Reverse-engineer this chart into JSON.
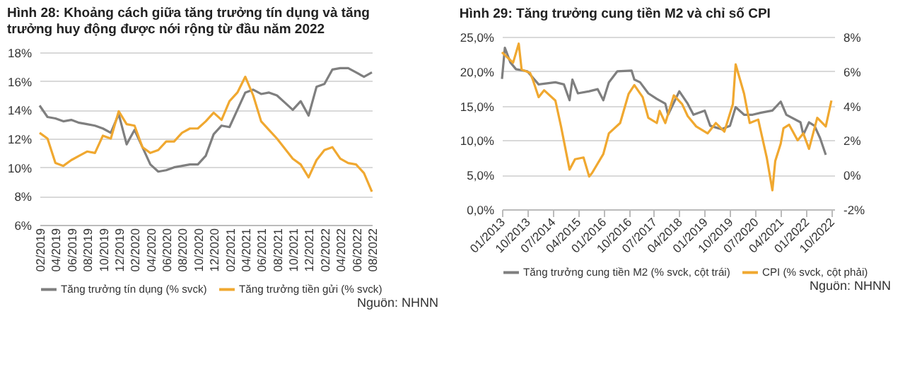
{
  "chart_data": [
    {
      "type": "line",
      "title": "Hình 28: Khoảng cách giữa tăng trưởng tín dụng và tăng trưởng huy động được nới rộng từ đầu năm 2022",
      "categories": [
        "02/2019",
        null,
        "04/2019",
        null,
        "06/2019",
        null,
        "08/2019",
        null,
        "10/2019",
        null,
        "12/2019",
        null,
        "02/2020",
        null,
        "04/2020",
        null,
        "06/2020",
        null,
        "08/2020",
        null,
        "10/2020",
        null,
        "12/2020",
        null,
        "02/2021",
        null,
        "04/2021",
        null,
        "06/2021",
        null,
        "08/2021",
        null,
        "10/2021",
        null,
        "12/2021",
        null,
        "02/2022",
        null,
        "04/2022",
        null,
        "06/2022",
        null,
        "08/2022"
      ],
      "series": [
        {
          "name": "Tăng trưởng tín dụng (% svck)",
          "color": "#7f7f7f",
          "values": [
            14.3,
            13.5,
            13.4,
            13.2,
            13.3,
            13.1,
            13.0,
            12.9,
            12.7,
            12.4,
            13.7,
            11.6,
            12.6,
            11.4,
            10.2,
            9.7,
            9.8,
            10.0,
            10.1,
            10.2,
            10.2,
            10.8,
            12.3,
            12.9,
            12.8,
            14.0,
            15.2,
            15.4,
            15.1,
            15.2,
            15.0,
            14.5,
            14.0,
            14.6,
            13.6,
            15.6,
            15.8,
            16.8,
            16.9,
            16.9,
            16.6,
            16.3,
            16.6
          ]
        },
        {
          "name": "Tăng trưởng tiền gửi (% svck)",
          "color": "#f0a830",
          "values": [
            12.4,
            12.0,
            10.3,
            10.1,
            10.5,
            10.8,
            11.1,
            11.0,
            12.2,
            12.0,
            13.9,
            13.0,
            12.9,
            11.4,
            11.0,
            11.2,
            11.8,
            11.8,
            12.4,
            12.7,
            12.7,
            13.2,
            13.8,
            13.3,
            14.6,
            15.2,
            16.3,
            15.0,
            13.2,
            12.6,
            12.0,
            11.3,
            10.6,
            10.2,
            9.3,
            10.5,
            11.2,
            11.4,
            10.6,
            10.3,
            10.2,
            9.6,
            8.3
          ]
        }
      ],
      "ylim": [
        6,
        18
      ],
      "yticks": [
        {
          "value": 6,
          "label": "6%"
        },
        {
          "value": 8,
          "label": "8%"
        },
        {
          "value": 10,
          "label": "10%"
        },
        {
          "value": 12,
          "label": "12%"
        },
        {
          "value": 14,
          "label": "14%"
        },
        {
          "value": 16,
          "label": "16%"
        },
        {
          "value": 18,
          "label": "18%"
        }
      ],
      "grid": "y",
      "legend": "bottom",
      "annotations": [
        "Nguồn: NHNN"
      ]
    },
    {
      "type": "line",
      "title": "Hình 29: Tăng trưởng cung tiền M2 và chỉ số CPI",
      "series": [
        {
          "name": "Tăng trưởng cung tiền M2 (% svck, cột trái)",
          "color": "#7f7f7f",
          "x": [
            "2013-01",
            "2013-02",
            "2013-04",
            "2013-06",
            "2013-10",
            "2014-02",
            "2014-08",
            "2014-11",
            "2015-01",
            "2015-02",
            "2015-04",
            "2015-08",
            "2015-11",
            "2016-01",
            "2016-03",
            "2016-06",
            "2016-11",
            "2016-12",
            "2017-02",
            "2017-05",
            "2017-08",
            "2017-11",
            "2017-12",
            "2018-04",
            "2018-07",
            "2018-09",
            "2019-01",
            "2019-03",
            "2019-07",
            "2019-10",
            "2019-12",
            "2020-03",
            "2020-06",
            "2020-09",
            "2021-01",
            "2021-04",
            "2021-06",
            "2021-11",
            "2021-12",
            "2022-02",
            "2022-04",
            "2022-06",
            "2022-08"
          ],
          "values": [
            18.9,
            23.4,
            21.3,
            20.3,
            20.0,
            18.1,
            18.4,
            18.1,
            15.8,
            18.8,
            16.8,
            17.1,
            17.4,
            15.8,
            18.4,
            20.0,
            20.1,
            18.8,
            18.4,
            16.8,
            16.0,
            15.3,
            13.7,
            17.1,
            15.3,
            13.7,
            14.3,
            12.1,
            11.6,
            12.1,
            14.8,
            13.7,
            13.7,
            14.0,
            14.3,
            15.6,
            13.7,
            12.6,
            10.8,
            12.6,
            12.1,
            10.3,
            7.9
          ]
        },
        {
          "name": "CPI (% svck, cột phải)",
          "color": "#f0a830",
          "axis": "y2",
          "x": [
            "2013-01",
            "2013-03",
            "2013-05",
            "2013-07",
            "2013-08",
            "2013-11",
            "2013-12",
            "2014-02",
            "2014-04",
            "2014-08",
            "2014-10",
            "2015-01",
            "2015-03",
            "2015-06",
            "2015-08",
            "2015-09",
            "2016-01",
            "2016-03",
            "2016-07",
            "2016-10",
            "2016-12",
            "2017-03",
            "2017-05",
            "2017-08",
            "2017-09",
            "2017-11",
            "2018-02",
            "2018-05",
            "2018-07",
            "2018-10",
            "2019-02",
            "2019-05",
            "2019-08",
            "2019-11",
            "2019-12",
            "2020-03",
            "2020-05",
            "2020-08",
            "2020-11",
            "2021-01",
            "2021-02",
            "2021-04",
            "2021-05",
            "2021-07",
            "2021-10",
            "2021-12",
            "2022-02",
            "2022-05",
            "2022-08",
            "2022-10"
          ],
          "values": [
            7.1,
            6.8,
            6.5,
            7.6,
            6.1,
            5.9,
            5.5,
            4.5,
            4.9,
            4.3,
            2.8,
            0.3,
            0.9,
            1.0,
            -0.1,
            0.1,
            1.2,
            2.4,
            3.0,
            4.7,
            5.2,
            4.5,
            3.3,
            3.0,
            3.7,
            3.0,
            4.6,
            4.1,
            3.4,
            2.8,
            2.4,
            3.0,
            2.5,
            4.1,
            6.4,
            4.7,
            3.0,
            3.2,
            1.0,
            -0.9,
            0.8,
            1.8,
            2.7,
            2.9,
            2.0,
            2.4,
            1.5,
            3.3,
            2.8,
            4.3
          ]
        }
      ],
      "xlim": [
        "2013-01",
        "2022-11"
      ],
      "xticks": [
        {
          "value": "2013-01",
          "label": "01/2013"
        },
        {
          "value": "2013-10",
          "label": "10/2013"
        },
        {
          "value": "2014-07",
          "label": "07/2014"
        },
        {
          "value": "2015-04",
          "label": "04/2015"
        },
        {
          "value": "2016-01",
          "label": "01/2016"
        },
        {
          "value": "2016-10",
          "label": "10/2016"
        },
        {
          "value": "2017-07",
          "label": "07/2017"
        },
        {
          "value": "2018-04",
          "label": "04/2018"
        },
        {
          "value": "2019-01",
          "label": "01/2019"
        },
        {
          "value": "2019-10",
          "label": "10/2019"
        },
        {
          "value": "2020-07",
          "label": "07/2020"
        },
        {
          "value": "2021-04",
          "label": "04/2021"
        },
        {
          "value": "2022-01",
          "label": "01/2022"
        },
        {
          "value": "2022-10",
          "label": "10/2022"
        }
      ],
      "ylim": [
        0,
        25
      ],
      "yticks": [
        {
          "value": 0,
          "label": "0,0%"
        },
        {
          "value": 5,
          "label": "5,0%"
        },
        {
          "value": 10,
          "label": "10,0%"
        },
        {
          "value": 15,
          "label": "15,0%"
        },
        {
          "value": 20,
          "label": "20,0%"
        },
        {
          "value": 25,
          "label": "25,0%"
        }
      ],
      "y2lim": [
        -2,
        8
      ],
      "y2ticks": [
        {
          "value": -2,
          "label": "-2%"
        },
        {
          "value": 0,
          "label": "0%"
        },
        {
          "value": 2,
          "label": "2%"
        },
        {
          "value": 4,
          "label": "4%"
        },
        {
          "value": 6,
          "label": "6%"
        },
        {
          "value": 8,
          "label": "8%"
        }
      ],
      "grid": "y",
      "legend": "bottom",
      "annotations": [
        "Nguồn: NHNN"
      ]
    }
  ]
}
